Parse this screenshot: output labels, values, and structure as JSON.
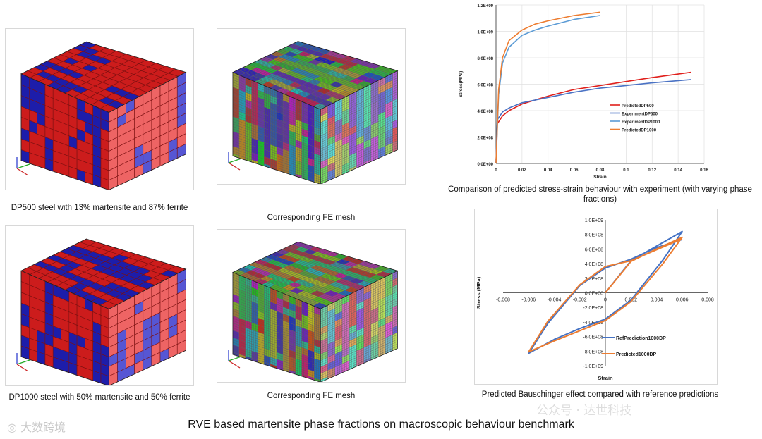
{
  "captions": {
    "dp500": "DP500 steel with 13% martensite and 87% ferrite",
    "mesh_top": "Corresponding FE mesh",
    "dp1000": "DP1000 steel with 50% martensite and 50% ferrite",
    "mesh_bottom": "Corresponding FE mesh",
    "chart1": "Comparison of predicted stress-strain behaviour with experiment (with varying phase fractions)",
    "chart2": "Predicted Bauschinger effect compared with reference predictions"
  },
  "footer_title": "RVE based martensite phase fractions on macroscopic behaviour benchmark",
  "watermark_left": "大数跨境",
  "watermark_right": "公众号 · 达世科技",
  "colors": {
    "red": "#d42020",
    "blue": "#1b1ba8",
    "lightred": "#e85a5a",
    "lightblue": "#5858d8"
  },
  "chart_data": [
    {
      "type": "line",
      "xlabel": "Strain",
      "ylabel": "Stress(MPa)",
      "xlim": [
        0,
        0.16
      ],
      "ylim": [
        0,
        1200000000.0
      ],
      "xticks": [
        "0",
        "0.02",
        "0.04",
        "0.06",
        "0.08",
        "0.1",
        "0.12",
        "0.14",
        "0.16"
      ],
      "yticks": [
        "0.0E+00",
        "2.0E+08",
        "4.0E+08",
        "6.0E+08",
        "8.0E+08",
        "1.0E+09",
        "1.2E+09"
      ],
      "legend_position": "right-center",
      "grid": true,
      "series": [
        {
          "name": "PredictedDP500",
          "color": "#e0201c",
          "points": [
            [
              0,
              0
            ],
            [
              0.001,
              300000000.0
            ],
            [
              0.005,
              360000000.0
            ],
            [
              0.01,
              400000000.0
            ],
            [
              0.02,
              450000000.0
            ],
            [
              0.04,
              510000000.0
            ],
            [
              0.06,
              560000000.0
            ],
            [
              0.08,
              590000000.0
            ],
            [
              0.1,
              620000000.0
            ],
            [
              0.12,
              650000000.0
            ],
            [
              0.15,
              690000000.0
            ]
          ]
        },
        {
          "name": "ExperimentDP500",
          "color": "#4a72c4",
          "points": [
            [
              0,
              0
            ],
            [
              0.001,
              330000000.0
            ],
            [
              0.005,
              390000000.0
            ],
            [
              0.01,
              420000000.0
            ],
            [
              0.02,
              460000000.0
            ],
            [
              0.04,
              500000000.0
            ],
            [
              0.06,
              540000000.0
            ],
            [
              0.08,
              570000000.0
            ],
            [
              0.1,
              590000000.0
            ],
            [
              0.12,
              610000000.0
            ],
            [
              0.15,
              635000000.0
            ]
          ]
        },
        {
          "name": "ExperimentDP1000",
          "color": "#5b9bd5",
          "points": [
            [
              0,
              0
            ],
            [
              0.002,
              520000000.0
            ],
            [
              0.005,
              760000000.0
            ],
            [
              0.01,
              880000000.0
            ],
            [
              0.02,
              970000000.0
            ],
            [
              0.03,
              1010000000.0
            ],
            [
              0.04,
              1040000000.0
            ],
            [
              0.06,
              1090000000.0
            ],
            [
              0.08,
              1120000000.0
            ]
          ]
        },
        {
          "name": "PredictedDP1000",
          "color": "#ed7d31",
          "points": [
            [
              0,
              0
            ],
            [
              0.002,
              560000000.0
            ],
            [
              0.005,
              800000000.0
            ],
            [
              0.01,
              930000000.0
            ],
            [
              0.02,
              1010000000.0
            ],
            [
              0.03,
              1055000000.0
            ],
            [
              0.04,
              1080000000.0
            ],
            [
              0.06,
              1120000000.0
            ],
            [
              0.08,
              1145000000.0
            ]
          ]
        }
      ]
    },
    {
      "type": "line",
      "xlabel": "Strain",
      "ylabel": "Stress (MPa)",
      "xlim": [
        -0.008,
        0.008
      ],
      "ylim": [
        -1000000000.0,
        1000000000.0
      ],
      "xticks": [
        "-0.008",
        "-0.006",
        "-0.004",
        "-0.002",
        "0",
        "0.002",
        "0.004",
        "0.006",
        "0.008"
      ],
      "yticks": [
        "-1.0E+09",
        "-8.0E+08",
        "-6.0E+08",
        "-4.0E+08",
        "-2.0E+08",
        "0.0E+00",
        "2.0E+08",
        "4.0E+08",
        "6.0E+08",
        "8.0E+08",
        "1.0E+09"
      ],
      "legend_position": "bottom-right",
      "grid": false,
      "series": [
        {
          "name": "RefPrediction1000DP",
          "color": "#4472c4",
          "points": [
            [
              0,
              0
            ],
            [
              0.002,
              440000000.0
            ],
            [
              0.004,
              640000000.0
            ],
            [
              0.006,
              840000000.0
            ],
            [
              0.0045,
              450000000.0
            ],
            [
              0.002,
              -100000000.0
            ],
            [
              0,
              -360000000.0
            ],
            [
              -0.002,
              -490000000.0
            ],
            [
              -0.004,
              -640000000.0
            ],
            [
              -0.006,
              -830000000.0
            ],
            [
              -0.0045,
              -420000000.0
            ],
            [
              -0.002,
              100000000.0
            ],
            [
              0,
              340000000.0
            ],
            [
              0.002,
              460000000.0
            ],
            [
              0.004,
              620000000.0
            ],
            [
              0.006,
              730000000.0
            ]
          ]
        },
        {
          "name": "Predicted1000DP",
          "color": "#ed7d31",
          "points": [
            [
              0,
              0
            ],
            [
              0.002,
              430000000.0
            ],
            [
              0.004,
              600000000.0
            ],
            [
              0.006,
              760000000.0
            ],
            [
              0.0045,
              400000000.0
            ],
            [
              0.002,
              -120000000.0
            ],
            [
              0,
              -380000000.0
            ],
            [
              -0.002,
              -520000000.0
            ],
            [
              -0.004,
              -660000000.0
            ],
            [
              -0.006,
              -810000000.0
            ],
            [
              -0.0045,
              -390000000.0
            ],
            [
              -0.002,
              110000000.0
            ],
            [
              0,
              360000000.0
            ],
            [
              0.002,
              440000000.0
            ],
            [
              0.004,
              590000000.0
            ],
            [
              0.006,
              740000000.0
            ]
          ]
        }
      ]
    }
  ]
}
